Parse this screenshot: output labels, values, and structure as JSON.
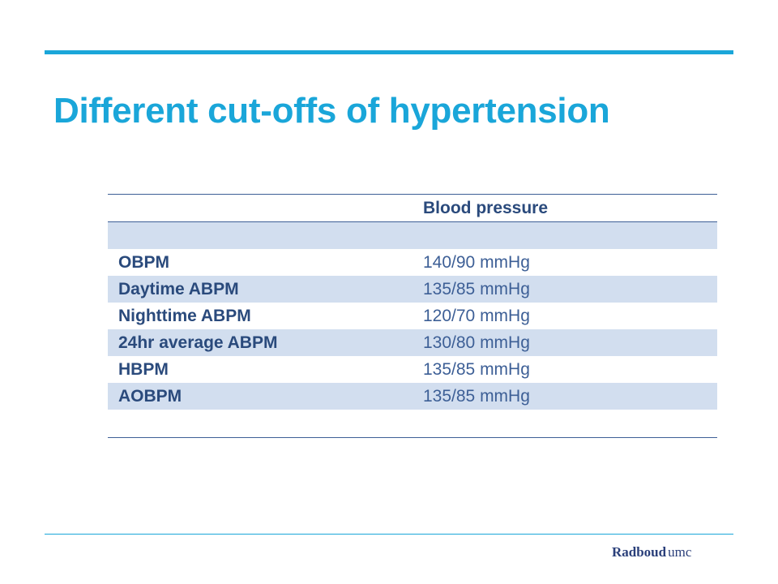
{
  "slide": {
    "title": "Different cut-offs of hypertension"
  },
  "table": {
    "header": [
      "",
      "Blood pressure"
    ],
    "rows": [
      {
        "label": "OBPM",
        "value": "140/90 mmHg"
      },
      {
        "label": "Daytime ABPM",
        "value": "135/85 mmHg"
      },
      {
        "label": "Nighttime ABPM",
        "value": "120/70 mmHg"
      },
      {
        "label": "24hr average ABPM",
        "value": "130/80 mmHg"
      },
      {
        "label": "HBPM",
        "value": "135/85 mmHg"
      },
      {
        "label": "AOBPM",
        "value": "135/85 mmHg"
      }
    ]
  },
  "footer": {
    "logo_part1": "Radboud",
    "logo_part2": "umc"
  },
  "colors": {
    "accent": "#1aa6d9",
    "table_text": "#2a4a7c",
    "row_shade": "#d2deef"
  }
}
